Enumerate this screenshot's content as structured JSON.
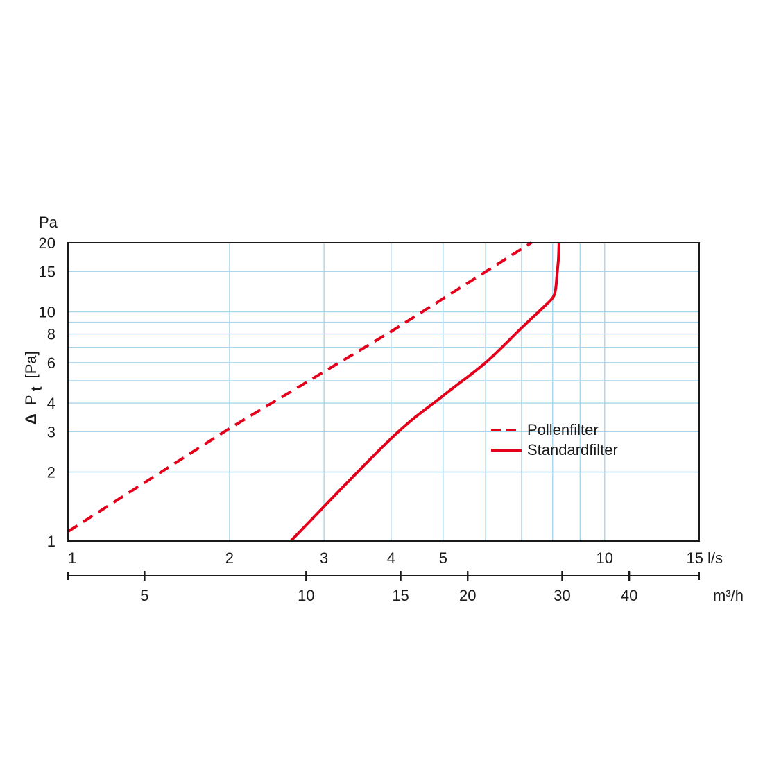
{
  "chart_data": {
    "type": "line",
    "title": "",
    "xlabel": "l/s",
    "x2label": "m³/h",
    "ylabel_prefix": "Δ",
    "ylabel_main": "P",
    "ylabel_sub": "t",
    "ylabel_unit": "[Pa]",
    "yunit": "Pa",
    "xscale": "log",
    "yscale": "log",
    "xlim": [
      1,
      15
    ],
    "ylim": [
      1,
      20
    ],
    "x_ticks": [
      1,
      2,
      3,
      4,
      5,
      10,
      15
    ],
    "x_tick_labels": [
      "1",
      "2",
      "3",
      "4",
      "5",
      "10",
      "15"
    ],
    "x_gridlines": [
      2,
      3,
      4,
      5,
      6,
      7,
      8,
      9,
      10
    ],
    "y_ticks": [
      1,
      2,
      3,
      4,
      6,
      8,
      10,
      15,
      20
    ],
    "y_tick_labels": [
      "1",
      "2",
      "3",
      "4",
      "6",
      "8",
      "10",
      "15",
      "20"
    ],
    "y_gridlines": [
      2,
      3,
      4,
      5,
      6,
      7,
      8,
      9,
      10,
      15
    ],
    "x2_ticks": [
      5,
      10,
      15,
      20,
      30,
      40
    ],
    "x2_tick_labels": [
      "5",
      "10",
      "15",
      "20",
      "30",
      "40"
    ],
    "grid": true,
    "legend_position": "right-center",
    "series": [
      {
        "name": "Pollenfilter",
        "style": "dashed",
        "color": "#e3001b",
        "points": [
          [
            1.0,
            1.1
          ],
          [
            2.0,
            3.1
          ],
          [
            4.0,
            8.2
          ],
          [
            7.3,
            20.0
          ]
        ]
      },
      {
        "name": "Standardfilter",
        "style": "solid",
        "color": "#e3001b",
        "points": [
          [
            2.6,
            1.0
          ],
          [
            4.0,
            2.8
          ],
          [
            5.0,
            4.3
          ],
          [
            6.0,
            6.0
          ],
          [
            7.0,
            8.5
          ],
          [
            7.7,
            10.5
          ],
          [
            8.0,
            11.5
          ],
          [
            8.1,
            12.5
          ],
          [
            8.15,
            14.5
          ],
          [
            8.2,
            17.0
          ],
          [
            8.22,
            20.0
          ]
        ]
      }
    ]
  },
  "colors": {
    "grid": "#a9d6ef",
    "axis": "#1a1a1a",
    "series": "#e3001b"
  }
}
